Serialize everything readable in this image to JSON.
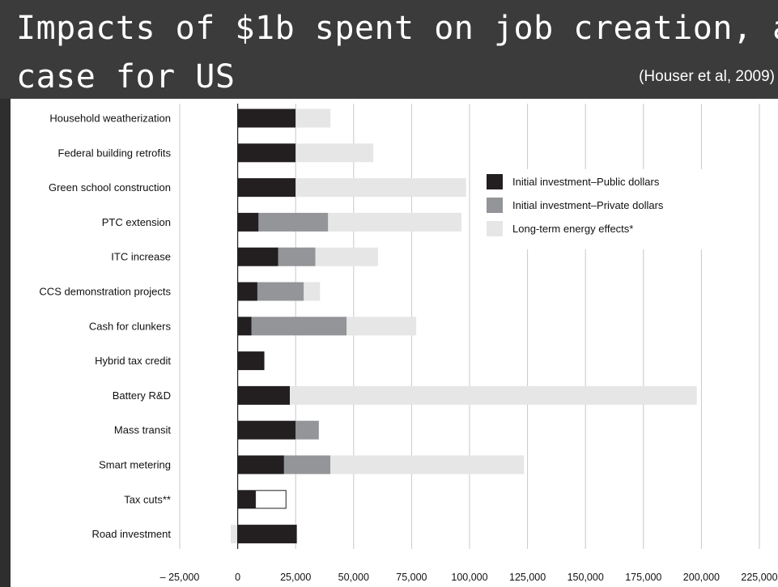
{
  "slide": {
    "title_line_1": "Impacts of $1b spent on job creation, a",
    "title_line_2": "case for US",
    "source": "(Houser et al, 2009)"
  },
  "chart_data": {
    "type": "bar",
    "orientation": "horizontal",
    "stacked": true,
    "categories": [
      "Household weatherization",
      "Federal building retrofits",
      "Green school construction",
      "PTC extension",
      "ITC increase",
      "CCS demonstration projects",
      "Cash for clunkers",
      "Hybrid tax credit",
      "Battery R&D",
      "Mass transit",
      "Smart metering",
      "Tax cuts**",
      "Road investment"
    ],
    "series": [
      {
        "name": "Initial investment–Public dollars",
        "color": "#231f20",
        "values": [
          25000,
          25000,
          25000,
          9000,
          17500,
          8500,
          6000,
          11500,
          22500,
          25000,
          20000,
          7500,
          25500
        ]
      },
      {
        "name": "Initial investment–Private dollars",
        "color": "#939598",
        "values": [
          0,
          0,
          0,
          30000,
          16000,
          20000,
          41000,
          0,
          0,
          10000,
          20000,
          0,
          0
        ]
      },
      {
        "name": "Long-term energy effects*",
        "color": "#e6e6e6",
        "values": [
          15000,
          33500,
          73500,
          57500,
          27000,
          7000,
          30000,
          0,
          175500,
          0,
          83500,
          0,
          -3000
        ]
      }
    ],
    "special_segments": [
      {
        "category": "Tax cuts**",
        "from": 7500,
        "to": 21000,
        "fill": "#ffffff",
        "stroke": "#231f20"
      }
    ],
    "xlim": [
      -25000,
      225000
    ],
    "xticks": [
      -25000,
      0,
      25000,
      50000,
      75000,
      100000,
      125000,
      150000,
      175000,
      200000,
      225000
    ],
    "xtick_labels": [
      "– 25,000",
      "0",
      "25,000",
      "50,000",
      "75,000",
      "100,000",
      "125,000",
      "150,000",
      "175,000",
      "200,000",
      "225,000"
    ],
    "xlabel": "",
    "ylabel": "",
    "grid": true,
    "legend_position": "top-right"
  }
}
